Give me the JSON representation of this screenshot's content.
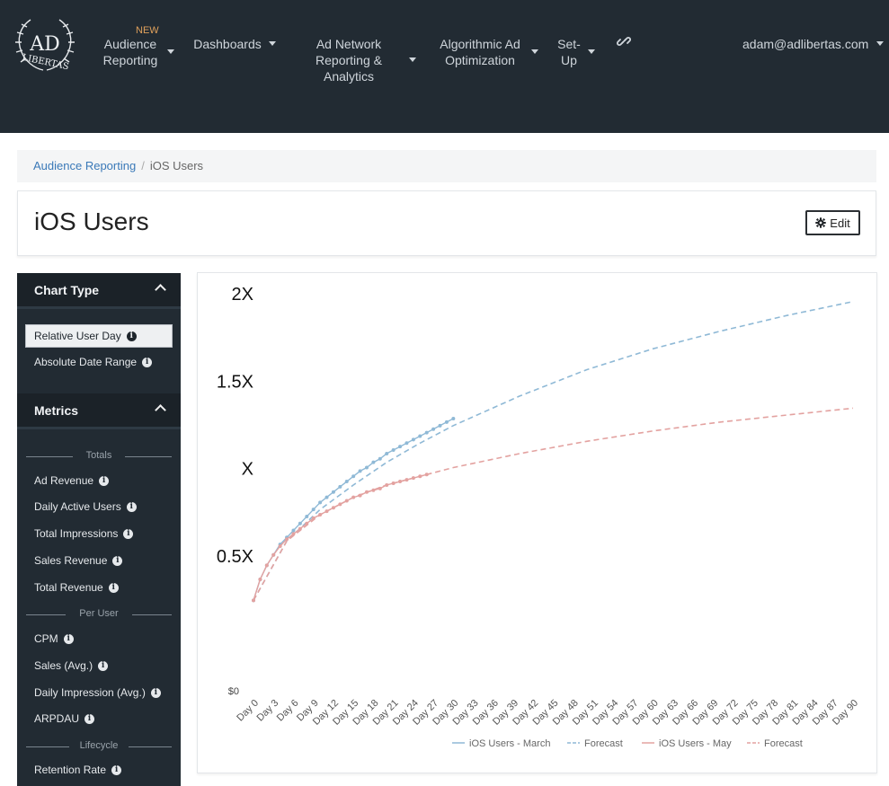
{
  "nav": {
    "logo_text_top": "AD",
    "logo_text_bottom": "LIBERTAS",
    "new_badge": "NEW",
    "items": [
      {
        "lines": [
          "Audience",
          "Reporting"
        ]
      },
      {
        "lines": [
          "Dashboards"
        ]
      },
      {
        "lines": [
          "Ad Network",
          "Reporting &",
          "Analytics"
        ]
      },
      {
        "lines": [
          "Algorithmic Ad",
          "Optimization"
        ]
      },
      {
        "lines": [
          "Set-",
          "Up"
        ]
      }
    ],
    "user_email": "adam@adlibertas.com"
  },
  "breadcrumb": {
    "parent": "Audience Reporting",
    "separator": "/",
    "current": "iOS Users"
  },
  "page": {
    "title": "iOS Users",
    "edit_label": "Edit"
  },
  "sidebar": {
    "chart_type_title": "Chart Type",
    "chart_type_items": [
      "Relative User Day",
      "Absolute Date Range"
    ],
    "metrics_title": "Metrics",
    "groups": [
      {
        "label": "Totals",
        "items": [
          "Ad Revenue",
          "Daily Active Users",
          "Total Impressions",
          "Sales Revenue",
          "Total Revenue"
        ]
      },
      {
        "label": "Per User",
        "items": [
          "CPM",
          "Sales (Avg.)",
          "Daily Impression (Avg.)",
          "ARPDAU"
        ]
      },
      {
        "label": "Lifecycle",
        "items": [
          "Retention Rate"
        ]
      }
    ]
  },
  "chart_data": {
    "type": "line",
    "y_tick_labels": [
      "$0",
      "0.5X",
      "X",
      "1.5X",
      "2X"
    ],
    "y_ticks": [
      0,
      0.5,
      1,
      1.5,
      2
    ],
    "ylim": [
      0,
      2
    ],
    "xlim": [
      0,
      90
    ],
    "x_tick_labels": [
      "Day 0",
      "Day 3",
      "Day 6",
      "Day 9",
      "Day 12",
      "Day 15",
      "Day 18",
      "Day 21",
      "Day 24",
      "Day 27",
      "Day 30",
      "Day 33",
      "Day 36",
      "Day 39",
      "Day 42",
      "Day 45",
      "Day 48",
      "Day 51",
      "Day 54",
      "Day 57",
      "Day 60",
      "Day 63",
      "Day 66",
      "Day 69",
      "Day 72",
      "Day 75",
      "Day 78",
      "Day 81",
      "Day 84",
      "Day 87",
      "Day 90"
    ],
    "series": [
      {
        "name": "iOS Users - March",
        "style": "solid-dots",
        "color": "#8fb9d6",
        "x": [
          0,
          1,
          2,
          3,
          4,
          5,
          6,
          7,
          8,
          9,
          10,
          11,
          12,
          13,
          14,
          15,
          16,
          17,
          18,
          19,
          20,
          21,
          22,
          23,
          24,
          25,
          26,
          27,
          28,
          29,
          30
        ],
        "y": [
          0.24,
          0.36,
          0.44,
          0.5,
          0.56,
          0.6,
          0.64,
          0.68,
          0.72,
          0.76,
          0.8,
          0.83,
          0.86,
          0.89,
          0.92,
          0.95,
          0.98,
          1.0,
          1.03,
          1.05,
          1.08,
          1.1,
          1.12,
          1.14,
          1.16,
          1.18,
          1.2,
          1.22,
          1.24,
          1.26,
          1.28
        ]
      },
      {
        "name": "Forecast",
        "style": "dashed",
        "color": "#8fb9d6",
        "x": [
          0,
          5,
          10,
          15,
          20,
          25,
          30,
          40,
          50,
          60,
          70,
          80,
          90
        ],
        "y": [
          0.24,
          0.58,
          0.76,
          0.9,
          1.03,
          1.14,
          1.24,
          1.41,
          1.56,
          1.68,
          1.78,
          1.87,
          1.95
        ]
      },
      {
        "name": "iOS Users - May",
        "style": "solid-dots",
        "color": "#e3a2a0",
        "x": [
          0,
          1,
          2,
          3,
          4,
          5,
          6,
          7,
          8,
          9,
          10,
          11,
          12,
          13,
          14,
          15,
          16,
          17,
          18,
          19,
          20,
          21,
          22,
          23,
          24,
          25,
          26
        ],
        "y": [
          0.24,
          0.36,
          0.44,
          0.5,
          0.55,
          0.59,
          0.62,
          0.65,
          0.68,
          0.71,
          0.73,
          0.75,
          0.77,
          0.79,
          0.81,
          0.83,
          0.84,
          0.86,
          0.87,
          0.88,
          0.9,
          0.91,
          0.92,
          0.93,
          0.94,
          0.95,
          0.96
        ]
      },
      {
        "name": "Forecast",
        "style": "dashed",
        "color": "#e3a2a0",
        "x": [
          0,
          5,
          10,
          15,
          20,
          26,
          30,
          40,
          50,
          60,
          70,
          80,
          90
        ],
        "y": [
          0.24,
          0.58,
          0.73,
          0.83,
          0.9,
          0.96,
          1.0,
          1.08,
          1.15,
          1.21,
          1.26,
          1.3,
          1.34
        ]
      }
    ],
    "legend_position": "bottom"
  }
}
